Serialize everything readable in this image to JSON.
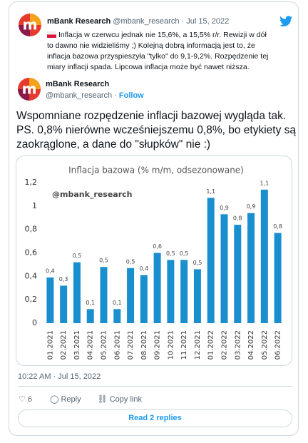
{
  "quoted": {
    "name": "mBank Research",
    "handle": "@mbank_research",
    "sep": "·",
    "date": "Jul 15, 2022",
    "lines": [
      "Inflacja w czerwcu jednak nie 15,6%, a 15,5% r/r. Rewizji w dół",
      "to dawno nie widzieliśmy ;) Kolejną dobrą informacją jest to, że",
      "inflacja bazowa przyspieszyła \"tylko\" do 9,1-9,2%. Rozpędzenie tej",
      "miary inflacji spada. Lipcowa inflacja może być nawet niższa."
    ]
  },
  "tweet": {
    "name": "mBank Research",
    "handle": "@mbank_research",
    "sep": "·",
    "follow": "Follow",
    "lines": [
      "Wspomniane rozpędzenie inflacji bazowej wygląda tak.",
      "PS. 0,8% nierówne wcześniejszemu 0,8%, bo etykiety są",
      "zaokrąglone, a dane do \"słupków\" nie :)"
    ],
    "timestamp": "10:22 AM · Jul 15, 2022",
    "likes": "6",
    "reply": "Reply",
    "copy_link": "Copy link",
    "read_replies": "Read 2 replies"
  },
  "chart_data": {
    "type": "bar",
    "title": "Inflacja bazowa (% m/m, odsezonowane)",
    "watermark": "@mbank_research",
    "color": "#1a8fd0",
    "categories": [
      "01.2021",
      "02.2021",
      "03.2021",
      "04.2021",
      "05.2021",
      "06.2021",
      "07.2021",
      "08.2021",
      "09.2021",
      "10.2021",
      "11.2021",
      "12.2021",
      "01.2022",
      "02.2022",
      "03.2022",
      "04.2022",
      "05.2022",
      "06.2022"
    ],
    "values": [
      0.39,
      0.32,
      0.52,
      0.12,
      0.48,
      0.12,
      0.47,
      0.41,
      0.6,
      0.54,
      0.54,
      0.46,
      1.07,
      0.93,
      0.84,
      0.94,
      1.14,
      0.77
    ],
    "value_labels": [
      "0,4",
      "0,3",
      "0,5",
      "0,1",
      "0,5",
      "0,1",
      "0,5",
      "0,4",
      "0,6",
      "0,5",
      "0,5",
      "0,5",
      "1,1",
      "0,9",
      "0,8",
      "0,9",
      "1,1",
      "0,8"
    ],
    "ylim": [
      0,
      1.2
    ],
    "yticks": [
      0,
      {
        "value": 0.2,
        "label": "0,2"
      },
      {
        "value": 0.4,
        "label": "0,4"
      },
      {
        "value": 0.6,
        "label": "0,6"
      },
      {
        "value": 0.8,
        "label": "0,8"
      },
      1,
      {
        "value": 1.2,
        "label": "1,2"
      }
    ]
  }
}
